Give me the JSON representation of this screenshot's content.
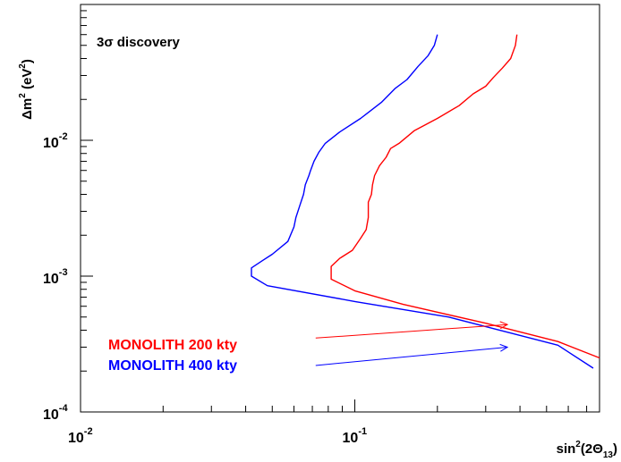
{
  "chart_data": {
    "type": "line",
    "xlabel": "sin",
    "xlabel_sup": "2",
    "xlabel_rest": "(2Θ",
    "xlabel_sub": "13",
    "xlabel_end": ")",
    "ylabel": "Δm",
    "ylabel_sup1": "2",
    "ylabel_rest": " (eV",
    "ylabel_sup2": "2",
    "ylabel_end": ")",
    "annotation": "3σ discovery",
    "x_scale": "log",
    "y_scale": "log",
    "xlim": [
      0.01,
      0.78
    ],
    "ylim": [
      0.0001,
      0.1
    ],
    "x_ticks": [
      {
        "value": 0.01,
        "base": "10",
        "exp": "-2"
      },
      {
        "value": 0.1,
        "base": "10",
        "exp": "-1"
      }
    ],
    "y_ticks": [
      {
        "value": 0.0001,
        "base": "10",
        "exp": "-4"
      },
      {
        "value": 0.001,
        "base": "10",
        "exp": "-3"
      },
      {
        "value": 0.01,
        "base": "10",
        "exp": "-2"
      }
    ],
    "grid": false,
    "legend_position": "bottom-left",
    "series": [
      {
        "name": "MONOLITH 200 kty",
        "color": "#ff0000",
        "x": [
          0.39,
          0.385,
          0.37,
          0.345,
          0.32,
          0.3,
          0.27,
          0.24,
          0.2,
          0.165,
          0.145,
          0.135,
          0.13,
          0.123,
          0.118,
          0.116,
          0.115,
          0.112,
          0.112,
          0.11,
          0.105,
          0.098,
          0.088,
          0.082,
          0.082,
          0.1,
          0.15,
          0.3,
          0.55,
          0.78
        ],
        "y": [
          0.06,
          0.05,
          0.04,
          0.034,
          0.029,
          0.025,
          0.022,
          0.018,
          0.0145,
          0.0118,
          0.0095,
          0.0087,
          0.0075,
          0.0065,
          0.0055,
          0.0047,
          0.004,
          0.0035,
          0.0027,
          0.0022,
          0.0019,
          0.00155,
          0.00135,
          0.00118,
          0.00095,
          0.00078,
          0.00062,
          0.00045,
          0.00033,
          0.00025
        ]
      },
      {
        "name": "MONOLITH 400 kty",
        "color": "#0000ff",
        "x": [
          0.2,
          0.195,
          0.185,
          0.17,
          0.155,
          0.14,
          0.125,
          0.105,
          0.088,
          0.078,
          0.074,
          0.071,
          0.069,
          0.068,
          0.066,
          0.065,
          0.063,
          0.061,
          0.06,
          0.057,
          0.05,
          0.046,
          0.042,
          0.042,
          0.048,
          0.1,
          0.22,
          0.55,
          0.74
        ],
        "y": [
          0.06,
          0.05,
          0.042,
          0.035,
          0.028,
          0.024,
          0.019,
          0.0145,
          0.0115,
          0.0095,
          0.0082,
          0.007,
          0.006,
          0.0055,
          0.0047,
          0.004,
          0.0033,
          0.0027,
          0.0023,
          0.0018,
          0.00145,
          0.0013,
          0.00115,
          0.001,
          0.00085,
          0.00065,
          0.0005,
          0.00031,
          0.00021
        ]
      }
    ],
    "arrows": [
      {
        "color": "#ff0000",
        "x": [
          0.072,
          0.36
        ],
        "y": [
          0.00035,
          0.00044
        ]
      },
      {
        "color": "#0000ff",
        "x": [
          0.072,
          0.36
        ],
        "y": [
          0.00022,
          0.0003
        ]
      }
    ]
  }
}
